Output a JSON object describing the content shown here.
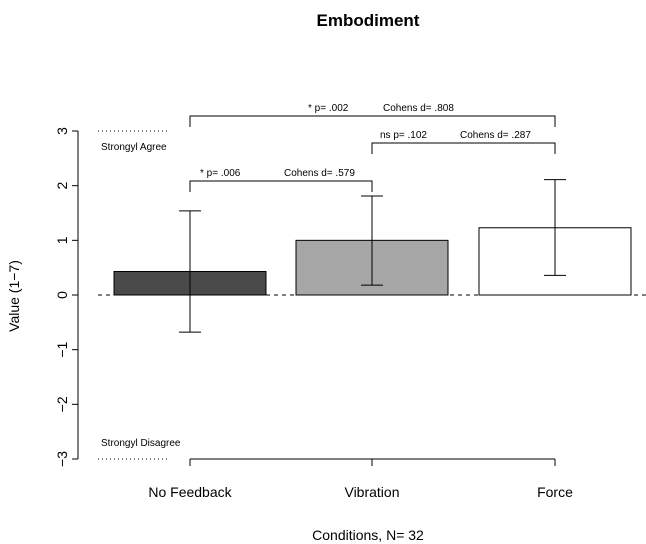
{
  "chart_data": {
    "type": "bar",
    "title": "Embodiment",
    "xlabel": "Conditions, N= 32",
    "ylabel": "Value (1−7)",
    "ylim": [
      -3,
      3
    ],
    "yticks": [
      -3,
      -2,
      -1,
      0,
      1,
      2,
      3
    ],
    "ytick_labels": [
      "−3",
      "−2",
      "−1",
      "0",
      "1",
      "2",
      "3"
    ],
    "categories": [
      "No Feedback",
      "Vibration",
      "Force"
    ],
    "values": [
      0.43,
      1.0,
      1.23
    ],
    "error_low": [
      -0.68,
      0.18,
      0.36
    ],
    "error_high": [
      1.54,
      1.81,
      2.11
    ],
    "bar_colors": [
      "#4a4a4a",
      "#a6a6a6",
      "#ffffff"
    ],
    "reference_labels": [
      {
        "text": "Strongyl Agree",
        "y": 3
      },
      {
        "text": "Strongyl Disagree",
        "y": -3
      }
    ],
    "zero_line": "dashed",
    "comparisons": [
      {
        "from": 0,
        "to": 1,
        "p_text": "* p= .006",
        "d_text": "Cohens d= .579"
      },
      {
        "from": 1,
        "to": 2,
        "p_text": "ns p= .102",
        "d_text": "Cohens d= .287"
      },
      {
        "from": 0,
        "to": 2,
        "p_text": "* p= .002",
        "d_text": "Cohens d= .808"
      }
    ]
  }
}
